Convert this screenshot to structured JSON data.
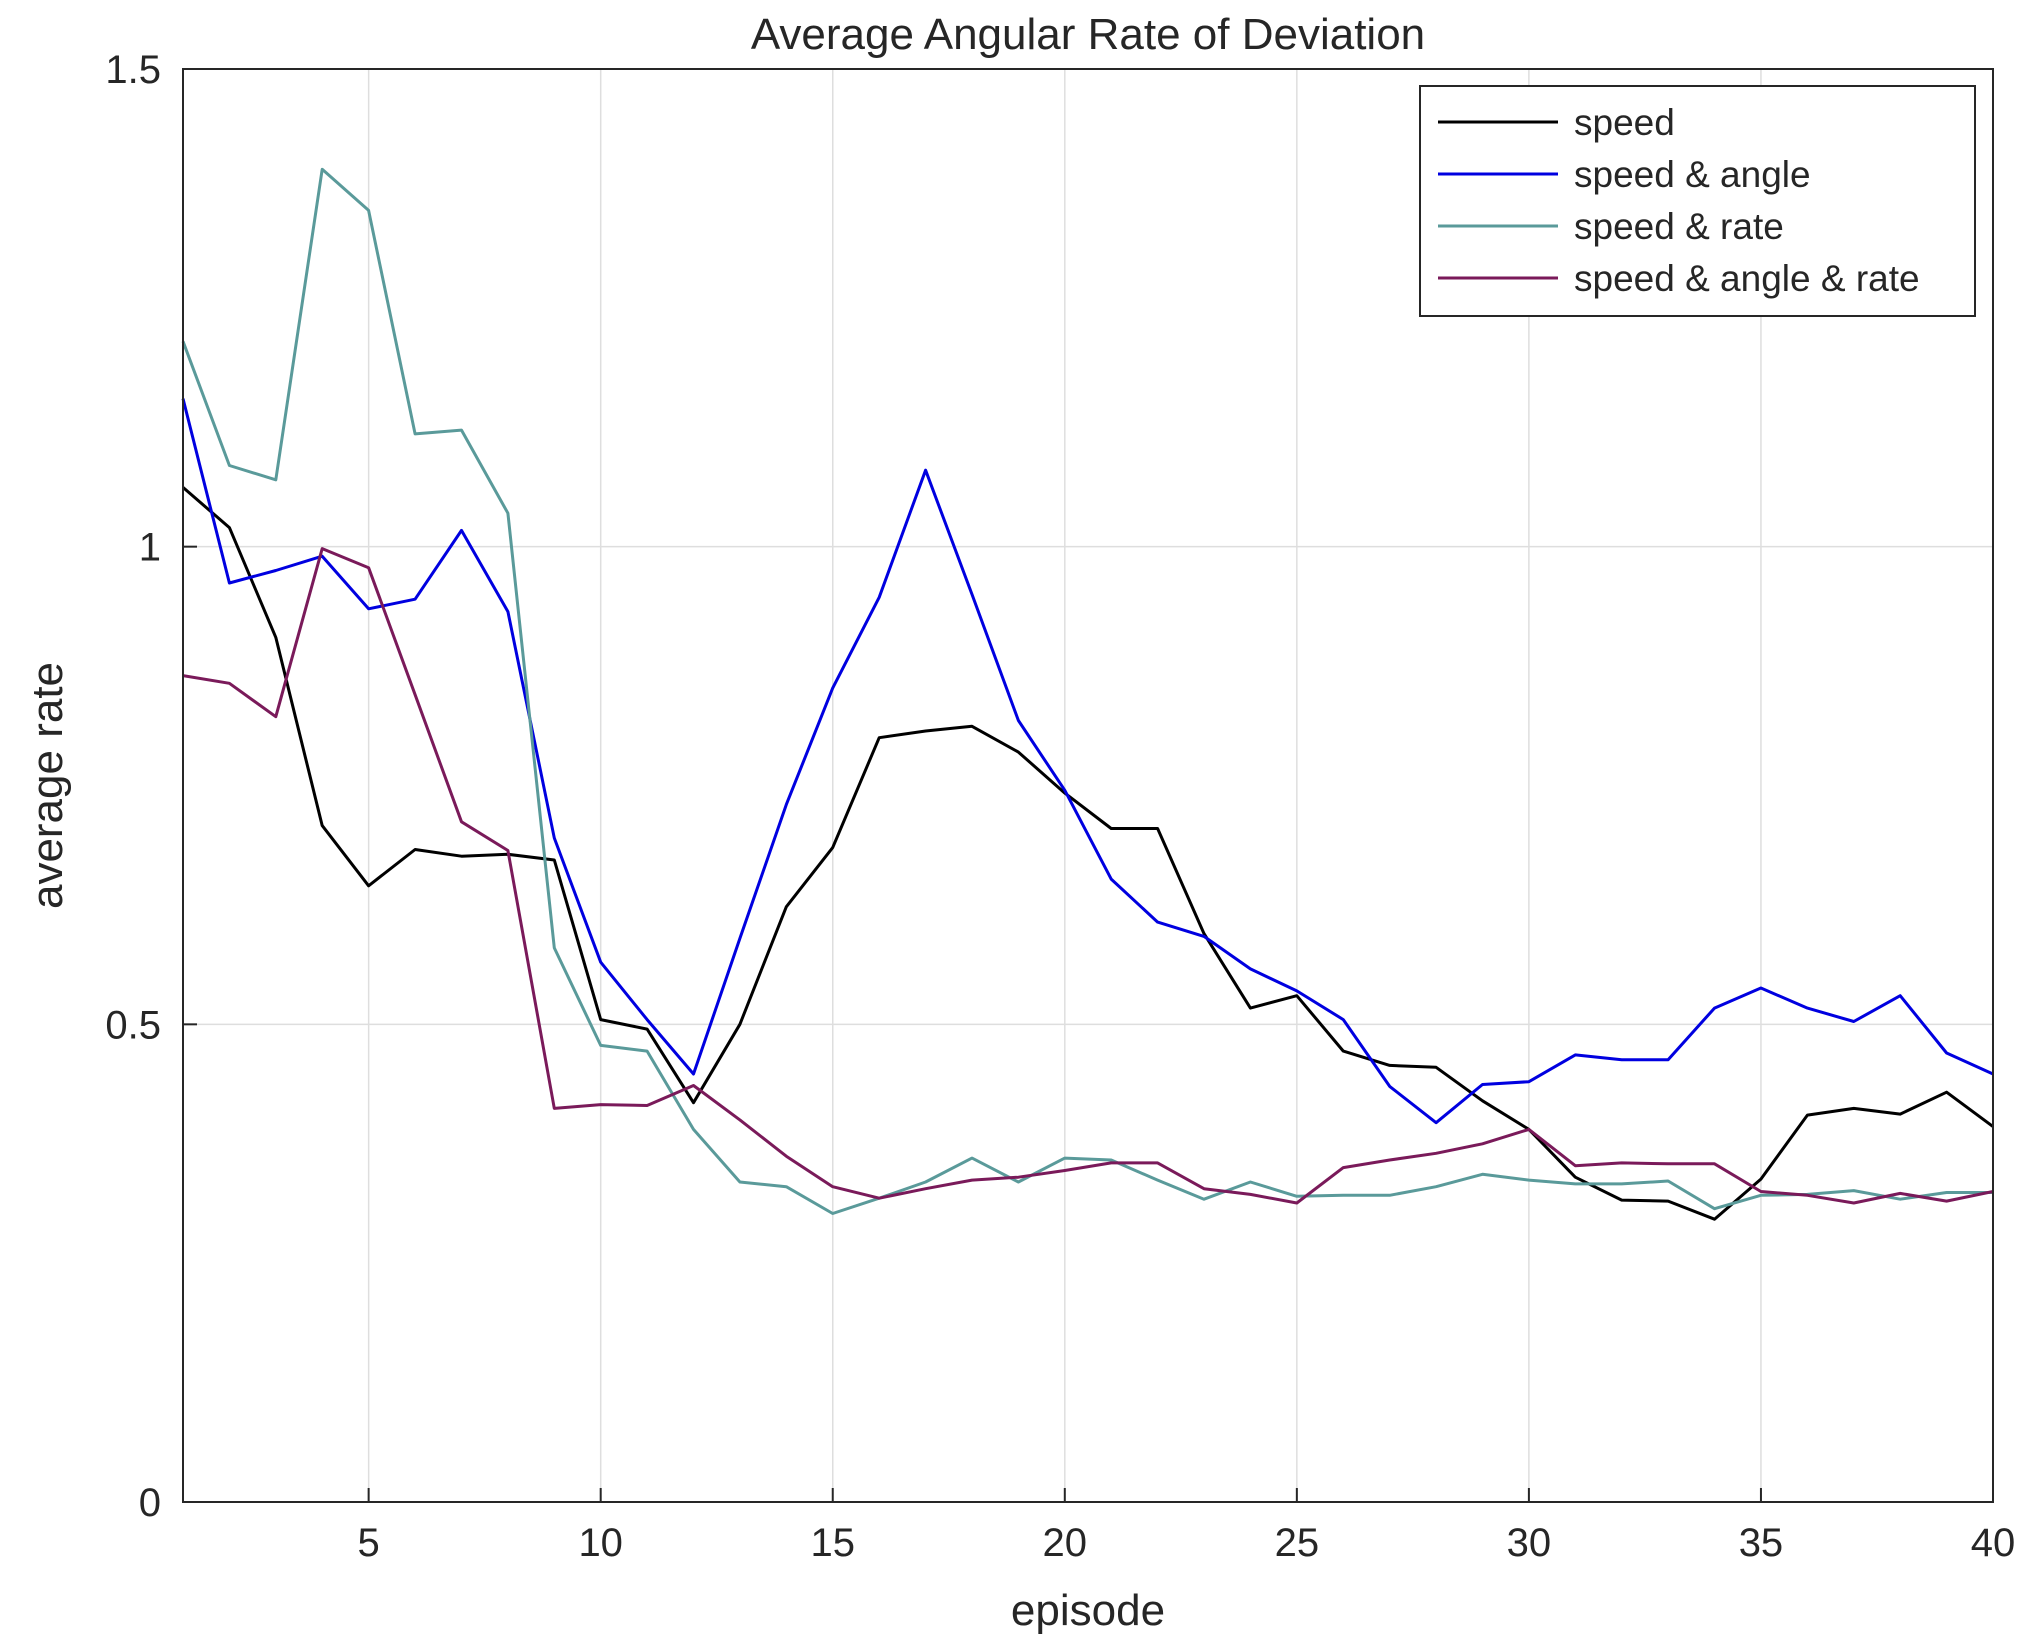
{
  "chart_data": {
    "type": "line",
    "title": "Average Angular Rate of Deviation",
    "xlabel": "episode",
    "ylabel": "average rate",
    "xlim": [
      1,
      40
    ],
    "ylim": [
      0,
      1.5
    ],
    "xticks": [
      5,
      10,
      15,
      20,
      25,
      30,
      35,
      40
    ],
    "yticks": [
      0,
      0.5,
      1,
      1.5
    ],
    "xtick_labels": [
      "5",
      "10",
      "15",
      "20",
      "25",
      "30",
      "35",
      "40"
    ],
    "ytick_labels": [
      "0",
      "0.5",
      "1",
      "1.5"
    ],
    "grid": true,
    "legend_position": "top-right",
    "x": [
      1,
      2,
      3,
      4,
      5,
      6,
      7,
      8,
      9,
      10,
      11,
      12,
      13,
      14,
      15,
      16,
      17,
      18,
      19,
      20,
      21,
      22,
      23,
      24,
      25,
      26,
      27,
      28,
      29,
      30,
      31,
      32,
      33,
      34,
      35,
      36,
      37,
      38,
      39,
      40
    ],
    "series": [
      {
        "name": "speed",
        "color": "#000000",
        "values": [
          1.062,
          1.02,
          0.905,
          0.708,
          0.645,
          0.683,
          0.676,
          0.678,
          0.672,
          0.505,
          0.495,
          0.418,
          0.5,
          0.623,
          0.685,
          0.8,
          0.807,
          0.812,
          0.785,
          0.742,
          0.705,
          0.705,
          0.595,
          0.517,
          0.53,
          0.472,
          0.457,
          0.455,
          0.42,
          0.39,
          0.34,
          0.316,
          0.315,
          0.296,
          0.338,
          0.405,
          0.412,
          0.406,
          0.429,
          0.393
        ]
      },
      {
        "name": "speed & angle",
        "color": "#0000e0",
        "values": [
          1.155,
          0.962,
          0.975,
          0.99,
          0.935,
          0.945,
          1.017,
          0.932,
          0.695,
          0.565,
          0.505,
          0.448,
          0.59,
          0.73,
          0.852,
          0.947,
          1.08,
          0.95,
          0.818,
          0.745,
          0.652,
          0.607,
          0.592,
          0.558,
          0.535,
          0.505,
          0.435,
          0.397,
          0.437,
          0.44,
          0.468,
          0.463,
          0.463,
          0.517,
          0.538,
          0.517,
          0.503,
          0.53,
          0.47,
          0.448
        ]
      },
      {
        "name": "speed & rate",
        "color": "#5a9a9a",
        "values": [
          1.215,
          1.085,
          1.07,
          1.395,
          1.352,
          1.118,
          1.122,
          1.035,
          0.58,
          0.478,
          0.472,
          0.39,
          0.335,
          0.33,
          0.302,
          0.318,
          0.335,
          0.36,
          0.335,
          0.36,
          0.358,
          0.337,
          0.317,
          0.335,
          0.32,
          0.321,
          0.321,
          0.33,
          0.343,
          0.337,
          0.333,
          0.333,
          0.336,
          0.307,
          0.321,
          0.322,
          0.326,
          0.317,
          0.324,
          0.324
        ]
      },
      {
        "name": "speed & angle & rate",
        "color": "#7a1a5a",
        "values": [
          0.865,
          0.857,
          0.822,
          0.998,
          0.978,
          0.845,
          0.712,
          0.682,
          0.412,
          0.416,
          0.415,
          0.436,
          0.4,
          0.362,
          0.33,
          0.318,
          0.328,
          0.337,
          0.34,
          0.347,
          0.355,
          0.355,
          0.328,
          0.322,
          0.313,
          0.35,
          0.358,
          0.365,
          0.375,
          0.39,
          0.352,
          0.355,
          0.354,
          0.354,
          0.325,
          0.321,
          0.313,
          0.323,
          0.315,
          0.325
        ]
      }
    ]
  }
}
